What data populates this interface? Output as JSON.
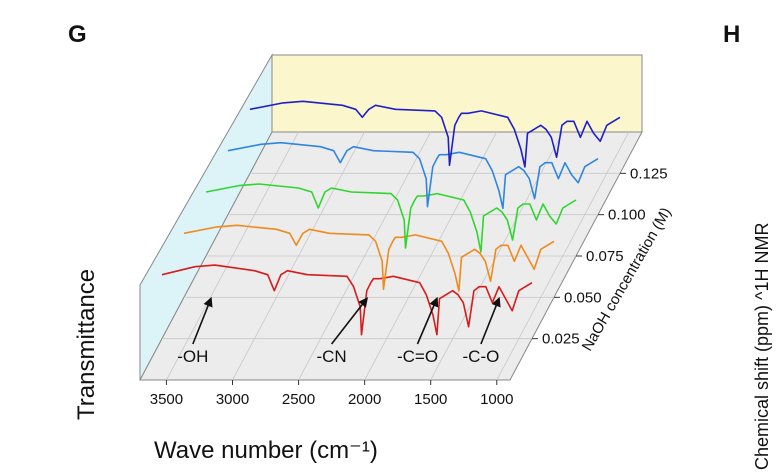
{
  "panels": {
    "left": "G",
    "right": "H"
  },
  "side_text": "Chemical shift (ppm) ^1H NMR",
  "chart_data": {
    "type": "line",
    "title": "",
    "xlabel": "Wave number (cm⁻¹)",
    "ylabel": "Transmittance",
    "zlabel": "NaOH concentration (M)",
    "xlim": [
      3700,
      900
    ],
    "x_ticks": [
      3500,
      3000,
      2500,
      2000,
      1500,
      1000
    ],
    "z_ticks": [
      0.025,
      0.05,
      0.075,
      0.1,
      0.125
    ],
    "z_tick_labels": [
      "0.025",
      "0.050",
      "0.075",
      "0.100",
      "0.125"
    ],
    "grid": true,
    "series": [
      {
        "z": 0.025,
        "color": "#d81b1b"
      },
      {
        "z": 0.05,
        "color": "#f08a1c"
      },
      {
        "z": 0.075,
        "color": "#2ed62e"
      },
      {
        "z": 0.1,
        "color": "#2f86e0"
      },
      {
        "z": 0.125,
        "color": "#1f1fc8"
      }
    ],
    "spectra": [
      {
        "x": [
          3700,
          3450,
          3300,
          3000,
          2900,
          2850,
          2800,
          2750,
          2600,
          2300,
          2250,
          2200,
          2190,
          2150,
          2120,
          2100,
          2050,
          1950,
          1750,
          1700,
          1650,
          1620,
          1600,
          1500,
          1460,
          1420,
          1380,
          1340,
          1300,
          1250,
          1200,
          1150,
          1100,
          1050,
          1000,
          950,
          900
        ],
        "y": [
          0.2,
          0.1,
          0.08,
          0.15,
          0.2,
          0.4,
          0.2,
          0.15,
          0.2,
          0.22,
          0.35,
          0.6,
          0.95,
          0.4,
          0.3,
          0.25,
          0.25,
          0.22,
          0.3,
          0.45,
          0.7,
          0.95,
          0.5,
          0.4,
          0.45,
          0.55,
          0.85,
          0.4,
          0.35,
          0.35,
          0.55,
          0.35,
          0.5,
          0.65,
          0.4,
          0.35,
          0.3
        ]
      },
      {
        "x": [
          3700,
          3450,
          3300,
          3000,
          2900,
          2850,
          2800,
          2750,
          2600,
          2300,
          2250,
          2200,
          2190,
          2150,
          2120,
          2100,
          2050,
          1950,
          1750,
          1700,
          1650,
          1620,
          1600,
          1500,
          1460,
          1420,
          1380,
          1340,
          1300,
          1250,
          1200,
          1150,
          1100,
          1050,
          1000,
          950,
          900
        ],
        "y": [
          0.2,
          0.12,
          0.1,
          0.15,
          0.2,
          0.35,
          0.2,
          0.15,
          0.2,
          0.22,
          0.3,
          0.55,
          0.9,
          0.4,
          0.3,
          0.25,
          0.25,
          0.22,
          0.3,
          0.45,
          0.7,
          0.92,
          0.5,
          0.4,
          0.45,
          0.55,
          0.8,
          0.4,
          0.35,
          0.35,
          0.55,
          0.35,
          0.5,
          0.65,
          0.4,
          0.35,
          0.3
        ]
      },
      {
        "x": [
          3700,
          3450,
          3300,
          3000,
          2900,
          2850,
          2800,
          2750,
          2600,
          2300,
          2250,
          2200,
          2190,
          2150,
          2120,
          2100,
          2050,
          1950,
          1750,
          1700,
          1650,
          1620,
          1600,
          1500,
          1460,
          1420,
          1380,
          1340,
          1300,
          1250,
          1200,
          1150,
          1100,
          1050,
          1000,
          950,
          900
        ],
        "y": [
          0.2,
          0.12,
          0.1,
          0.15,
          0.2,
          0.4,
          0.2,
          0.15,
          0.2,
          0.22,
          0.3,
          0.55,
          0.9,
          0.4,
          0.3,
          0.25,
          0.25,
          0.22,
          0.3,
          0.45,
          0.7,
          0.95,
          0.5,
          0.4,
          0.45,
          0.55,
          0.8,
          0.4,
          0.35,
          0.35,
          0.55,
          0.35,
          0.5,
          0.6,
          0.4,
          0.35,
          0.3
        ]
      },
      {
        "x": [
          3700,
          3450,
          3300,
          3000,
          2900,
          2850,
          2800,
          2750,
          2600,
          2300,
          2250,
          2200,
          2190,
          2150,
          2120,
          2100,
          2050,
          1950,
          1750,
          1700,
          1650,
          1620,
          1600,
          1500,
          1460,
          1420,
          1380,
          1340,
          1300,
          1250,
          1200,
          1150,
          1100,
          1050,
          1000,
          950,
          900
        ],
        "y": [
          0.2,
          0.12,
          0.1,
          0.15,
          0.2,
          0.35,
          0.2,
          0.15,
          0.2,
          0.22,
          0.3,
          0.55,
          0.9,
          0.4,
          0.3,
          0.25,
          0.25,
          0.22,
          0.3,
          0.45,
          0.7,
          0.92,
          0.5,
          0.4,
          0.45,
          0.55,
          0.8,
          0.4,
          0.35,
          0.35,
          0.55,
          0.35,
          0.5,
          0.6,
          0.4,
          0.35,
          0.3
        ]
      },
      {
        "x": [
          3700,
          3450,
          3300,
          3000,
          2900,
          2850,
          2800,
          2750,
          2600,
          2300,
          2250,
          2200,
          2190,
          2150,
          2120,
          2100,
          2050,
          1950,
          1750,
          1700,
          1650,
          1620,
          1600,
          1500,
          1460,
          1420,
          1380,
          1340,
          1300,
          1250,
          1200,
          1150,
          1100,
          1050,
          1000,
          950,
          900
        ],
        "y": [
          0.2,
          0.12,
          0.1,
          0.15,
          0.2,
          0.3,
          0.2,
          0.15,
          0.2,
          0.22,
          0.3,
          0.55,
          0.9,
          0.4,
          0.3,
          0.25,
          0.25,
          0.22,
          0.3,
          0.45,
          0.7,
          0.92,
          0.5,
          0.4,
          0.45,
          0.55,
          0.8,
          0.4,
          0.35,
          0.35,
          0.55,
          0.35,
          0.5,
          0.6,
          0.4,
          0.35,
          0.3
        ]
      }
    ],
    "annotations": [
      {
        "text": "-OH",
        "x": 3330,
        "label_x": 3300
      },
      {
        "text": "-CN",
        "x": 2150,
        "label_x": 2250
      },
      {
        "text": "-C=O",
        "x": 1620,
        "label_x": 1600
      },
      {
        "text": "-C-O",
        "x": 1150,
        "label_x": 1120
      }
    ]
  }
}
